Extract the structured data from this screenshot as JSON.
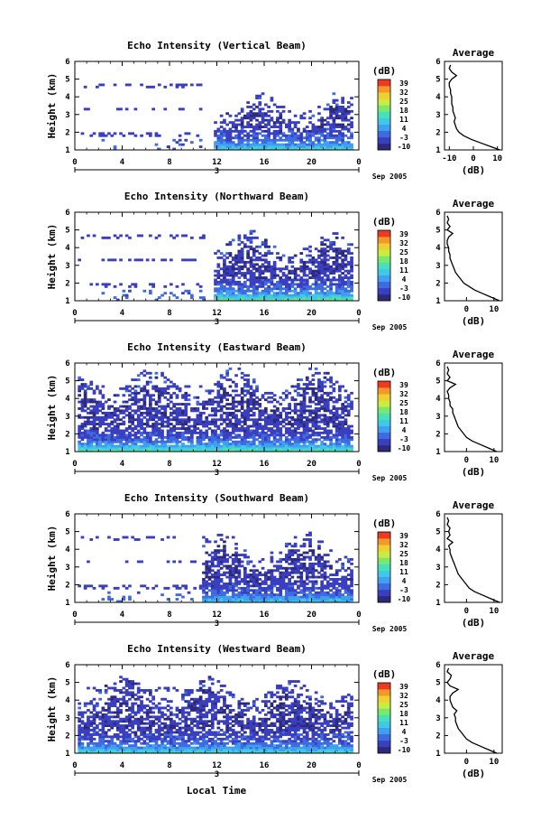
{
  "figure": {
    "xlabel": "Local Time",
    "date_label": "Sep 2005",
    "day_label": "3",
    "avg_title": "Average",
    "avg_xlabel": "(dB)",
    "colorbar_title": "(dB)"
  },
  "colors": {
    "scale": [
      "#2e2a7a",
      "#3a3fc0",
      "#3f6be0",
      "#3fa0f0",
      "#40c8e8",
      "#48e0b8",
      "#7ae870",
      "#c8ec40",
      "#f0d030",
      "#f49828",
      "#ee3a20"
    ]
  },
  "chart_data": [
    {
      "type": "heatmap",
      "title": "Echo Intensity (Vertical Beam)",
      "xlabel": "Local Time",
      "ylabel": "Height (km)",
      "x_ticks": [
        "0",
        "4",
        "8",
        "12",
        "16",
        "20",
        "0"
      ],
      "y_ticks": [
        "1",
        "2",
        "3",
        "4",
        "5",
        "6"
      ],
      "xlim": [
        0,
        24
      ],
      "ylim": [
        1,
        6
      ],
      "colorbar": {
        "label": "(dB)",
        "ticks": [
          "39",
          "32",
          "25",
          "18",
          "11",
          "4",
          "-3",
          "-10"
        ],
        "range": [
          -10,
          39
        ]
      },
      "average_profile": {
        "title": "Average",
        "xlabel": "(dB)",
        "x_ticks": [
          "-10",
          "0",
          "10"
        ],
        "xlim": [
          -12,
          12
        ],
        "height_km": [
          1.0,
          1.2,
          1.4,
          1.6,
          1.8,
          2.0,
          2.2,
          2.4,
          2.6,
          2.8,
          3.0,
          3.2,
          3.4,
          3.6,
          3.8,
          4.0,
          4.2,
          4.4,
          4.6,
          4.8,
          5.0,
          5.2,
          5.4,
          5.6,
          5.8
        ],
        "db": [
          11,
          7,
          3,
          -1,
          -4,
          -6,
          -7,
          -7.5,
          -8,
          -7.5,
          -8,
          -8.5,
          -8.5,
          -9,
          -9,
          -9,
          -9.5,
          -9.5,
          -10,
          -10,
          -9,
          -7,
          -9,
          -10,
          -9.5
        ]
      },
      "field": {
        "onset_hour": 11.5,
        "layer_top_km": 3.2,
        "peak_db": 22,
        "scatter_density": 0.5,
        "early_echoes": true
      }
    },
    {
      "type": "heatmap",
      "title": "Echo Intensity (Northward Beam)",
      "xlabel": "Local Time",
      "ylabel": "Height (km)",
      "x_ticks": [
        "0",
        "4",
        "8",
        "12",
        "16",
        "20",
        "0"
      ],
      "y_ticks": [
        "1",
        "2",
        "3",
        "4",
        "5",
        "6"
      ],
      "xlim": [
        0,
        24
      ],
      "ylim": [
        1,
        6
      ],
      "colorbar": {
        "label": "(dB)",
        "ticks": [
          "39",
          "32",
          "25",
          "18",
          "11",
          "4",
          "-3",
          "-10"
        ],
        "range": [
          -10,
          39
        ]
      },
      "average_profile": {
        "title": "Average",
        "xlabel": "(dB)",
        "x_ticks": [
          "0",
          "10"
        ],
        "xlim": [
          -8,
          13
        ],
        "height_km": [
          1.0,
          1.2,
          1.4,
          1.6,
          1.8,
          2.0,
          2.2,
          2.4,
          2.6,
          2.8,
          3.0,
          3.2,
          3.4,
          3.6,
          3.8,
          4.0,
          4.2,
          4.4,
          4.6,
          4.8,
          5.0,
          5.2,
          5.4,
          5.6,
          5.8
        ],
        "db": [
          12,
          9,
          6,
          3,
          1,
          -1,
          -2,
          -3,
          -4,
          -4.5,
          -5,
          -5.5,
          -6,
          -6,
          -6.5,
          -6.5,
          -7,
          -7,
          -6.5,
          -5,
          -7,
          -6,
          -7,
          -6.5,
          -7
        ]
      },
      "field": {
        "onset_hour": 11.5,
        "layer_top_km": 3.8,
        "peak_db": 28,
        "scatter_density": 0.55,
        "early_echoes": true
      }
    },
    {
      "type": "heatmap",
      "title": "Echo Intensity (Eastward Beam)",
      "xlabel": "Local Time",
      "ylabel": "Height (km)",
      "x_ticks": [
        "0",
        "4",
        "8",
        "12",
        "16",
        "20",
        "0"
      ],
      "y_ticks": [
        "1",
        "2",
        "3",
        "4",
        "5",
        "6"
      ],
      "xlim": [
        0,
        24
      ],
      "ylim": [
        1,
        6
      ],
      "colorbar": {
        "label": "(dB)",
        "ticks": [
          "39",
          "32",
          "25",
          "18",
          "11",
          "4",
          "-3",
          "-10"
        ],
        "range": [
          -10,
          39
        ]
      },
      "average_profile": {
        "title": "Average",
        "xlabel": "(dB)",
        "x_ticks": [
          "0",
          "10"
        ],
        "xlim": [
          -8,
          13
        ],
        "height_km": [
          1.0,
          1.2,
          1.4,
          1.6,
          1.8,
          2.0,
          2.2,
          2.4,
          2.6,
          2.8,
          3.0,
          3.2,
          3.4,
          3.6,
          3.8,
          4.0,
          4.2,
          4.4,
          4.6,
          4.8,
          5.0,
          5.2,
          5.4,
          5.6,
          5.8
        ],
        "db": [
          11,
          8,
          5,
          2,
          0,
          -1,
          -2,
          -3,
          -3.5,
          -4,
          -4.5,
          -5,
          -5,
          -6,
          -6,
          -6.5,
          -6.5,
          -7,
          -6,
          -4,
          -7,
          -6,
          -7,
          -6.5,
          -7
        ]
      },
      "field": {
        "onset_hour": 0.0,
        "layer_top_km": 4.5,
        "peak_db": 26,
        "scatter_density": 0.65,
        "early_echoes": true
      }
    },
    {
      "type": "heatmap",
      "title": "Echo Intensity (Southward Beam)",
      "xlabel": "Local Time",
      "ylabel": "Height (km)",
      "x_ticks": [
        "0",
        "4",
        "8",
        "12",
        "16",
        "20",
        "0"
      ],
      "y_ticks": [
        "1",
        "2",
        "3",
        "4",
        "5",
        "6"
      ],
      "xlim": [
        0,
        24
      ],
      "ylim": [
        1,
        6
      ],
      "colorbar": {
        "label": "(dB)",
        "ticks": [
          "39",
          "32",
          "25",
          "18",
          "11",
          "4",
          "-3",
          "-10"
        ],
        "range": [
          -10,
          39
        ]
      },
      "average_profile": {
        "title": "Average",
        "xlabel": "(dB)",
        "x_ticks": [
          "0",
          "10"
        ],
        "xlim": [
          -8,
          13
        ],
        "height_km": [
          1.0,
          1.2,
          1.4,
          1.6,
          1.8,
          2.0,
          2.2,
          2.4,
          2.6,
          2.8,
          3.0,
          3.2,
          3.4,
          3.6,
          3.8,
          4.0,
          4.2,
          4.4,
          4.6,
          4.8,
          5.0,
          5.2,
          5.4,
          5.6,
          5.8
        ],
        "db": [
          12,
          9,
          6,
          3,
          1,
          0,
          -1,
          -2,
          -3,
          -3.5,
          -4,
          -4.5,
          -5,
          -5.5,
          -6,
          -6,
          -6.5,
          -5,
          -7,
          -6,
          -6.5,
          -6,
          -7,
          -6.5,
          -7
        ]
      },
      "field": {
        "onset_hour": 10.5,
        "layer_top_km": 3.8,
        "peak_db": 18,
        "scatter_density": 0.5,
        "early_echoes": true
      }
    },
    {
      "type": "heatmap",
      "title": "Echo Intensity (Westward Beam)",
      "xlabel": "Local Time",
      "ylabel": "Height (km)",
      "x_ticks": [
        "0",
        "4",
        "8",
        "12",
        "16",
        "20",
        "0"
      ],
      "y_ticks": [
        "1",
        "2",
        "3",
        "4",
        "5",
        "6"
      ],
      "xlim": [
        0,
        24
      ],
      "ylim": [
        1,
        6
      ],
      "colorbar": {
        "label": "(dB)",
        "ticks": [
          "39",
          "32",
          "25",
          "18",
          "11",
          "4",
          "-3",
          "-10"
        ],
        "range": [
          -10,
          39
        ]
      },
      "average_profile": {
        "title": "Average",
        "xlabel": "(dB)",
        "x_ticks": [
          "0",
          "10"
        ],
        "xlim": [
          -8,
          13
        ],
        "height_km": [
          1.0,
          1.2,
          1.4,
          1.6,
          1.8,
          2.0,
          2.2,
          2.4,
          2.6,
          2.8,
          3.0,
          3.2,
          3.4,
          3.6,
          3.8,
          4.0,
          4.2,
          4.4,
          4.6,
          4.8,
          5.0,
          5.2,
          5.4,
          5.6,
          5.8
        ],
        "db": [
          11,
          8,
          5,
          2,
          0,
          -1,
          -2,
          -3,
          -3.5,
          -4,
          -4,
          -4.5,
          -3.5,
          -5,
          -5.5,
          -6,
          -6,
          -5,
          -3,
          -6,
          -7,
          -6,
          -5.5,
          -7,
          -6.5
        ]
      },
      "field": {
        "onset_hour": 0.0,
        "layer_top_km": 4.2,
        "peak_db": 22,
        "scatter_density": 0.6,
        "early_echoes": true
      }
    }
  ]
}
